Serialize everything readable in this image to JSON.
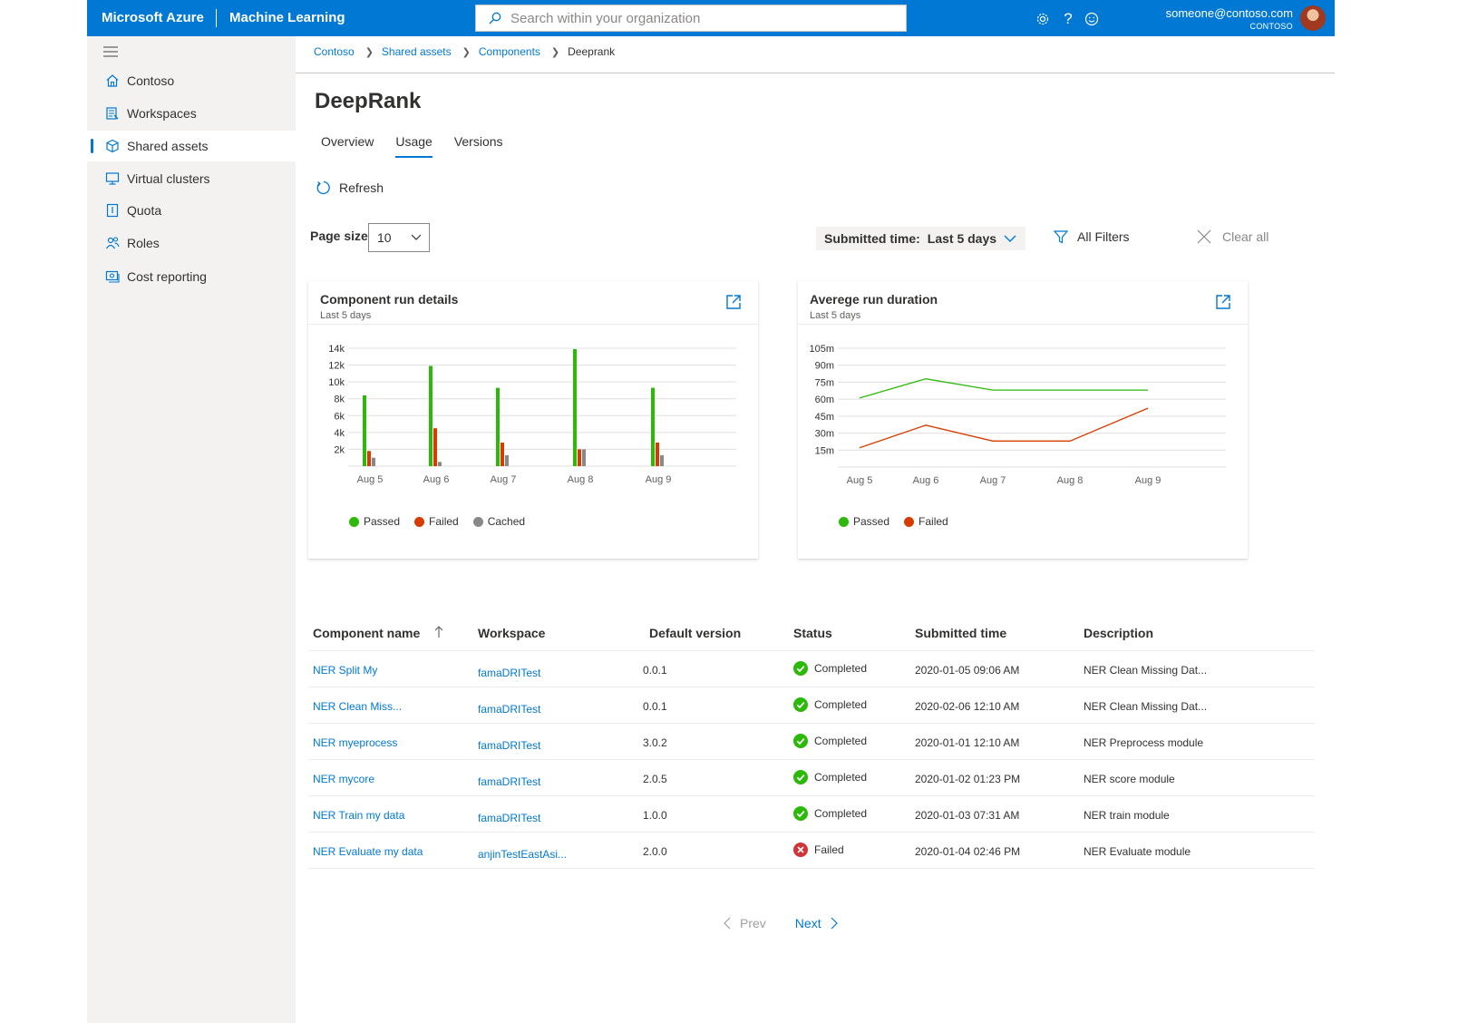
{
  "header": {
    "brand": "Microsoft Azure",
    "product": "Machine Learning",
    "search_placeholder": "Search within your organization",
    "user_email": "someone@contoso.com",
    "user_org": "CONTOSO",
    "icons": [
      "gear-icon",
      "help-icon",
      "feedback-icon"
    ]
  },
  "sidebar": {
    "items": [
      {
        "label": "Contoso",
        "icon": "home-icon",
        "active": false
      },
      {
        "label": "Workspaces",
        "icon": "workspaces-icon",
        "active": false
      },
      {
        "label": "Shared assets",
        "icon": "cube-icon",
        "active": true
      },
      {
        "label": "Virtual clusters",
        "icon": "monitor-icon",
        "active": false
      },
      {
        "label": "Quota",
        "icon": "quota-icon",
        "active": false
      },
      {
        "label": "Roles",
        "icon": "people-icon",
        "active": false
      },
      {
        "label": "Cost reporting",
        "icon": "cost-icon",
        "active": false
      }
    ]
  },
  "breadcrumb": [
    "Contoso",
    "Shared assets",
    "Components",
    "Deeprank"
  ],
  "page": {
    "title": "DeepRank",
    "tabs": [
      {
        "label": "Overview",
        "active": false
      },
      {
        "label": "Usage",
        "active": true
      },
      {
        "label": "Versions",
        "active": false
      }
    ],
    "refresh_label": "Refresh"
  },
  "toolbar": {
    "page_size_label": "Page size",
    "page_size_value": "10",
    "filter_label": "Submitted time:",
    "filter_value": "Last 5 days",
    "all_filters_label": "All Filters",
    "clear_all_label": "Clear all"
  },
  "chart_data": [
    {
      "type": "bar",
      "title": "Component run details",
      "subtitle": "Last 5 days",
      "categories": [
        "Aug 5",
        "Aug 6",
        "Aug 7",
        "Aug 8",
        "Aug 9"
      ],
      "yticks": [
        "2k",
        "4k",
        "6k",
        "8k",
        "10k",
        "12k",
        "14k"
      ],
      "ylim": [
        0,
        14000
      ],
      "series": [
        {
          "name": "Passed",
          "color": "#2db90a",
          "values": [
            8400,
            11900,
            9300,
            13900,
            9300
          ]
        },
        {
          "name": "Failed",
          "color": "#d83b01",
          "values": [
            1800,
            4500,
            2800,
            2000,
            2800
          ]
        },
        {
          "name": "Cached",
          "color": "#8a8886",
          "values": [
            1000,
            500,
            1300,
            2000,
            1300
          ]
        }
      ],
      "legend": "bottom",
      "grid": true
    },
    {
      "type": "line",
      "title": "Averege run duration",
      "subtitle": "Last 5 days",
      "categories": [
        "Aug 5",
        "Aug 6",
        "Aug 7",
        "Aug 8",
        "Aug 9"
      ],
      "yticks": [
        "15m",
        "30m",
        "45m",
        "60m",
        "75m",
        "90m",
        "105m"
      ],
      "ylim": [
        0,
        105
      ],
      "series": [
        {
          "name": "Passed",
          "color": "#2db90a",
          "values": [
            61,
            78,
            68,
            68,
            68
          ]
        },
        {
          "name": "Failed",
          "color": "#d83b01",
          "values": [
            17,
            37,
            23,
            23,
            52
          ]
        }
      ],
      "legend": "bottom",
      "grid": true
    }
  ],
  "table": {
    "columns": [
      "Component name",
      "Workspace",
      "Default version",
      "Status",
      "Submitted time",
      "Description"
    ],
    "rows": [
      {
        "name": "NER Split My",
        "workspace": "famaDRITest",
        "version": "0.0.1",
        "status": "Completed",
        "time": "2020-01-05 09:06 AM",
        "description": "NER Clean Missing Dat..."
      },
      {
        "name": "NER Clean Miss...",
        "workspace": "famaDRITest",
        "version": "0.0.1",
        "status": "Completed",
        "time": "2020-02-06 12:10 AM",
        "description": "NER Clean Missing Dat..."
      },
      {
        "name": "NER myeprocess",
        "workspace": "famaDRITest",
        "version": "3.0.2",
        "status": "Completed",
        "time": "2020-01-01 12:10 AM",
        "description": "NER Preprocess module"
      },
      {
        "name": "NER mycore",
        "workspace": "famaDRITest",
        "version": "2.0.5",
        "status": "Completed",
        "time": "2020-01-02 01:23 PM",
        "description": "NER score module"
      },
      {
        "name": "NER Train my data",
        "workspace": "famaDRITest",
        "version": "1.0.0",
        "status": "Completed",
        "time": "2020-01-03 07:31 AM",
        "description": "NER train module"
      },
      {
        "name": "NER Evaluate my data",
        "workspace": "anjinTestEastAsi...",
        "version": "2.0.0",
        "status": "Failed",
        "time": "2020-01-04 02:46 PM",
        "description": "NER Evaluate module"
      }
    ]
  },
  "pager": {
    "prev_label": "Prev",
    "next_label": "Next"
  },
  "colors": {
    "accent": "#0078d4",
    "success": "#2db90a",
    "error": "#d13438"
  }
}
